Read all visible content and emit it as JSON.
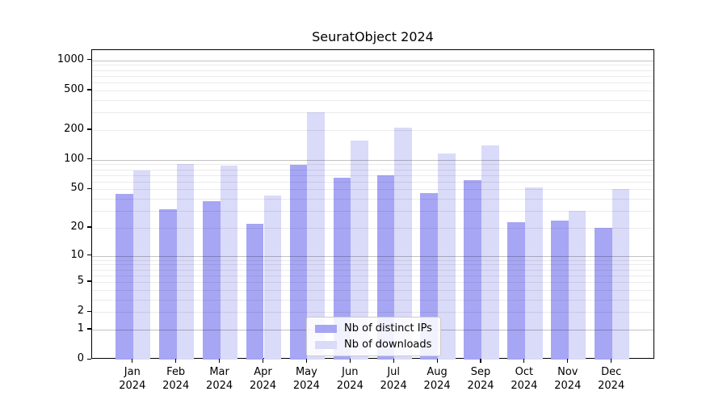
{
  "figure": {
    "title": "SeuratObject 2024"
  },
  "chart_data": {
    "type": "bar",
    "title": "SeuratObject 2024",
    "categories": [
      "Jan 2024",
      "Feb 2024",
      "Mar 2024",
      "Apr 2024",
      "May 2024",
      "Jun 2024",
      "Jul 2024",
      "Aug 2024",
      "Sep 2024",
      "Oct 2024",
      "Nov 2024",
      "Dec 2024"
    ],
    "series": [
      {
        "name": "Nb of distinct IPs",
        "color": "#a6a6f4",
        "values": [
          45,
          31,
          38,
          22,
          88,
          65,
          70,
          46,
          62,
          23,
          24,
          20
        ]
      },
      {
        "name": "Nb of downloads",
        "color": "#dadaf9",
        "values": [
          78,
          90,
          87,
          43,
          300,
          155,
          210,
          115,
          140,
          52,
          30,
          50
        ]
      }
    ],
    "yscale": "log1p",
    "yticks": [
      0,
      1,
      2,
      5,
      10,
      20,
      50,
      100,
      200,
      500,
      1000
    ],
    "ylim": [
      0,
      1270
    ],
    "xlabel": "",
    "ylabel": "",
    "grid": true,
    "legend_position": "lower-center-inside",
    "colors": {
      "bar_distinct_ips": "#a6a6f4",
      "bar_downloads": "#dadaf9",
      "grid_major": "#c3c3c3",
      "grid_minor": "#ebebeb",
      "axis": "#000000",
      "background": "#ffffff"
    }
  }
}
